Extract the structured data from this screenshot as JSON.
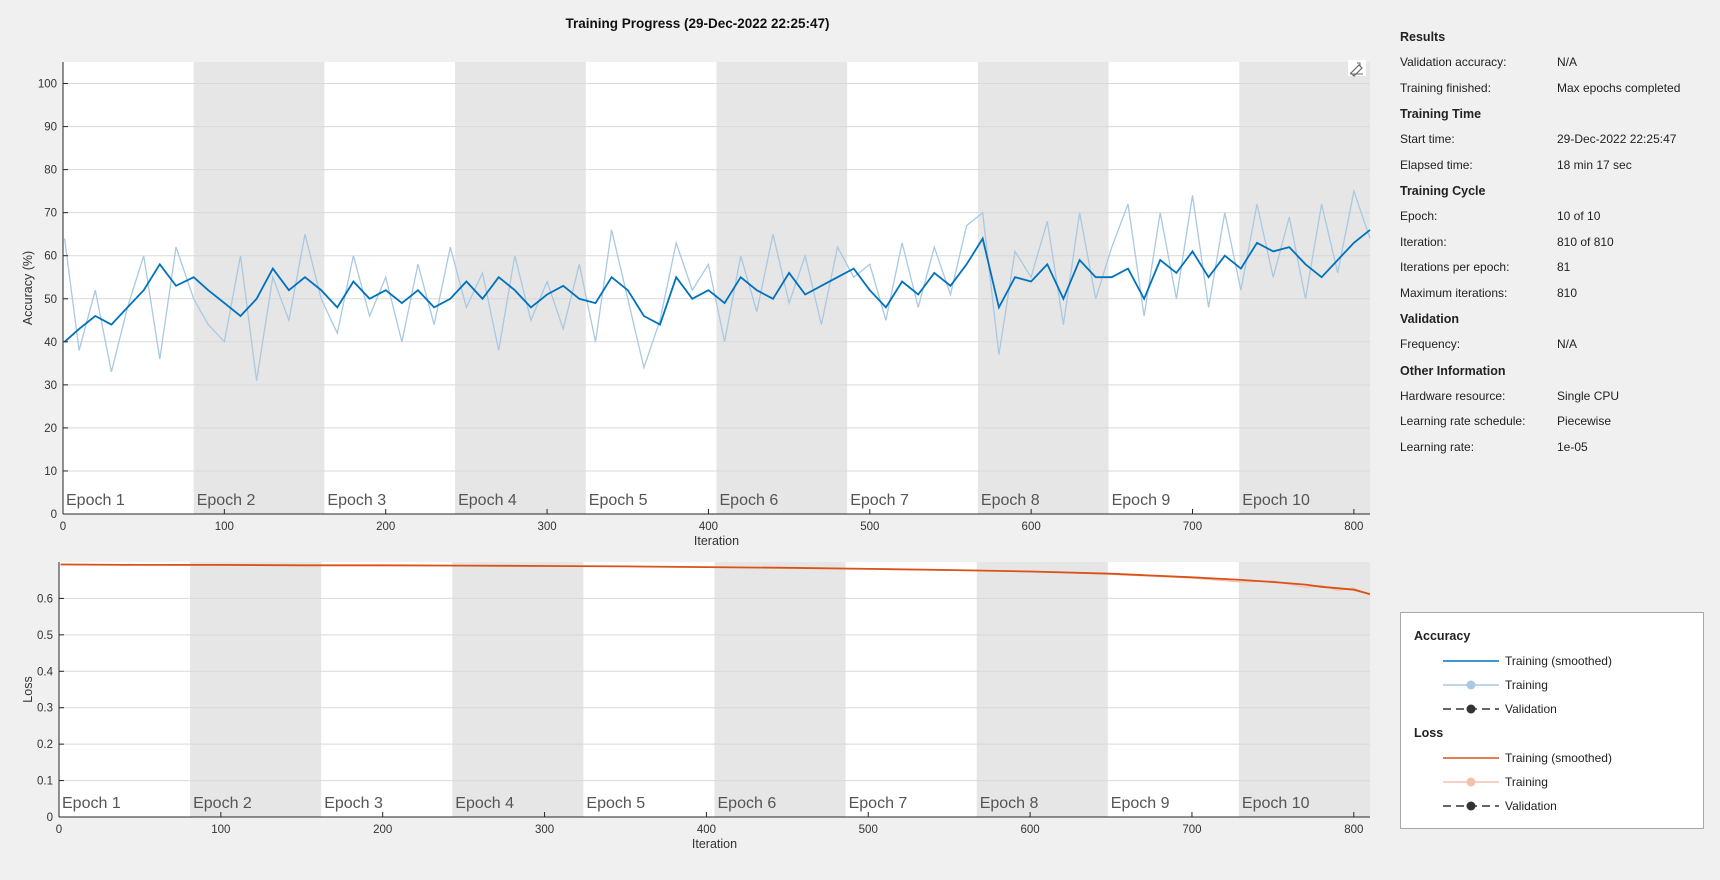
{
  "title": "Training Progress (29-Dec-2022 22:25:47)",
  "accuracy_plot": {
    "ylabel": "Accuracy (%)",
    "xlabel": "Iteration",
    "yticks": [
      "0",
      "10",
      "20",
      "30",
      "40",
      "50",
      "60",
      "70",
      "80",
      "90",
      "100"
    ],
    "xticks": [
      "0",
      "100",
      "200",
      "300",
      "400",
      "500",
      "600",
      "700",
      "800"
    ],
    "edit_icon": "axes-toolbar-icon"
  },
  "loss_plot": {
    "ylabel": "Loss",
    "xlabel": "Iteration",
    "yticks": [
      "0",
      "0.1",
      "0.2",
      "0.3",
      "0.4",
      "0.5",
      "0.6"
    ],
    "xticks": [
      "0",
      "100",
      "200",
      "300",
      "400",
      "500",
      "600",
      "700",
      "800"
    ]
  },
  "epochs": [
    "Epoch 1",
    "Epoch 2",
    "Epoch 3",
    "Epoch 4",
    "Epoch 5",
    "Epoch 6",
    "Epoch 7",
    "Epoch 8",
    "Epoch 9",
    "Epoch 10"
  ],
  "colors": {
    "accuracy_smoothed": "#0072bd",
    "accuracy_raw": "#a9c9e2",
    "loss_smoothed": "#d95319",
    "loss_raw": "#f3c2ad",
    "epoch_shade": "#e6e6e6"
  },
  "info": {
    "sections": [
      {
        "title": "Results",
        "rows": [
          {
            "key": "Validation accuracy:",
            "value": "N/A"
          },
          {
            "key": "Training finished:",
            "value": "Max epochs completed"
          }
        ]
      },
      {
        "title": "Training Time",
        "rows": [
          {
            "key": "Start time:",
            "value": "29-Dec-2022 22:25:47"
          },
          {
            "key": "Elapsed time:",
            "value": "18 min 17 sec"
          }
        ]
      },
      {
        "title": "Training Cycle",
        "rows": [
          {
            "key": "Epoch:",
            "value": "10 of 10"
          },
          {
            "key": "Iteration:",
            "value": "810 of 810"
          },
          {
            "key": "Iterations per epoch:",
            "value": "81"
          },
          {
            "key": "Maximum iterations:",
            "value": "810"
          }
        ]
      },
      {
        "title": "Validation",
        "rows": [
          {
            "key": "Frequency:",
            "value": "N/A"
          }
        ]
      },
      {
        "title": "Other Information",
        "rows": [
          {
            "key": "Hardware resource:",
            "value": "Single CPU"
          },
          {
            "key": "Learning rate schedule:",
            "value": "Piecewise"
          },
          {
            "key": "Learning rate:",
            "value": "1e-05"
          }
        ]
      }
    ]
  },
  "legend": {
    "accuracy_title": "Accuracy",
    "loss_title": "Loss",
    "training_smoothed": "Training (smoothed)",
    "training": "Training",
    "validation": "Validation"
  },
  "chart_data": [
    {
      "type": "line",
      "title": "Training Progress (29-Dec-2022 22:25:47)",
      "xlabel": "Iteration",
      "ylabel": "Accuracy (%)",
      "xlim": [
        0,
        810
      ],
      "ylim": [
        0,
        105
      ],
      "grid": true,
      "series": [
        {
          "name": "Training (smoothed)",
          "x": [
            1,
            10,
            20,
            30,
            40,
            50,
            60,
            70,
            81,
            90,
            100,
            110,
            120,
            130,
            140,
            150,
            160,
            170,
            180,
            190,
            200,
            210,
            220,
            230,
            240,
            250,
            260,
            270,
            280,
            290,
            300,
            310,
            320,
            330,
            340,
            350,
            360,
            370,
            380,
            390,
            400,
            410,
            420,
            430,
            440,
            450,
            460,
            470,
            480,
            490,
            500,
            510,
            520,
            530,
            540,
            550,
            560,
            570,
            580,
            590,
            600,
            610,
            620,
            630,
            640,
            650,
            660,
            670,
            680,
            690,
            700,
            710,
            720,
            730,
            740,
            750,
            760,
            770,
            780,
            790,
            800,
            810
          ],
          "values": [
            40,
            43,
            46,
            44,
            48,
            52,
            58,
            53,
            55,
            52,
            49,
            46,
            50,
            57,
            52,
            55,
            52,
            48,
            54,
            50,
            52,
            49,
            52,
            48,
            50,
            54,
            50,
            55,
            52,
            48,
            51,
            53,
            50,
            49,
            55,
            52,
            46,
            44,
            55,
            50,
            52,
            49,
            55,
            52,
            50,
            56,
            51,
            53,
            55,
            57,
            52,
            48,
            54,
            51,
            56,
            53,
            58,
            64,
            48,
            55,
            54,
            58,
            50,
            59,
            55,
            55,
            57,
            50,
            59,
            56,
            61,
            55,
            60,
            57,
            63,
            61,
            62,
            58,
            55,
            59,
            63,
            66
          ]
        },
        {
          "name": "Training",
          "x": [
            1,
            10,
            20,
            30,
            40,
            50,
            60,
            70,
            81,
            90,
            100,
            110,
            120,
            130,
            140,
            150,
            160,
            170,
            180,
            190,
            200,
            210,
            220,
            230,
            240,
            250,
            260,
            270,
            280,
            290,
            300,
            310,
            320,
            330,
            340,
            350,
            360,
            370,
            380,
            390,
            400,
            410,
            420,
            430,
            440,
            450,
            460,
            470,
            480,
            490,
            500,
            510,
            520,
            530,
            540,
            550,
            560,
            570,
            580,
            590,
            600,
            610,
            620,
            630,
            640,
            650,
            660,
            670,
            680,
            690,
            700,
            710,
            720,
            730,
            740,
            750,
            760,
            770,
            780,
            790,
            800,
            810
          ],
          "values": [
            64,
            38,
            52,
            33,
            48,
            60,
            36,
            62,
            50,
            44,
            40,
            60,
            31,
            55,
            45,
            65,
            50,
            42,
            60,
            46,
            55,
            40,
            58,
            44,
            62,
            48,
            56,
            38,
            60,
            45,
            54,
            43,
            58,
            40,
            66,
            50,
            34,
            45,
            63,
            52,
            58,
            40,
            60,
            47,
            65,
            49,
            60,
            44,
            62,
            55,
            58,
            45,
            63,
            48,
            62,
            51,
            67,
            70,
            37,
            61,
            55,
            68,
            44,
            70,
            50,
            62,
            72,
            46,
            70,
            50,
            74,
            48,
            70,
            52,
            72,
            55,
            69,
            50,
            72,
            56,
            75,
            64
          ]
        }
      ]
    },
    {
      "type": "line",
      "xlabel": "Iteration",
      "ylabel": "Loss",
      "xlim": [
        0,
        810
      ],
      "ylim": [
        0,
        0.7
      ],
      "grid": true,
      "series": [
        {
          "name": "Training (smoothed)",
          "x": [
            1,
            50,
            100,
            150,
            200,
            250,
            300,
            350,
            400,
            450,
            500,
            550,
            600,
            650,
            700,
            730,
            750,
            770,
            780,
            790,
            800,
            810
          ],
          "values": [
            0.693,
            0.692,
            0.692,
            0.691,
            0.691,
            0.69,
            0.689,
            0.688,
            0.686,
            0.684,
            0.681,
            0.678,
            0.674,
            0.668,
            0.658,
            0.651,
            0.645,
            0.638,
            0.632,
            0.628,
            0.624,
            0.612
          ]
        },
        {
          "name": "Training",
          "x": [
            1,
            50,
            100,
            150,
            200,
            250,
            300,
            350,
            400,
            450,
            500,
            550,
            600,
            650,
            700,
            730,
            750,
            770,
            780,
            790,
            800,
            810
          ],
          "values": [
            0.694,
            0.692,
            0.691,
            0.691,
            0.69,
            0.69,
            0.689,
            0.688,
            0.686,
            0.684,
            0.682,
            0.677,
            0.675,
            0.666,
            0.656,
            0.645,
            0.648,
            0.63,
            0.636,
            0.622,
            0.628,
            0.609
          ]
        }
      ]
    }
  ]
}
